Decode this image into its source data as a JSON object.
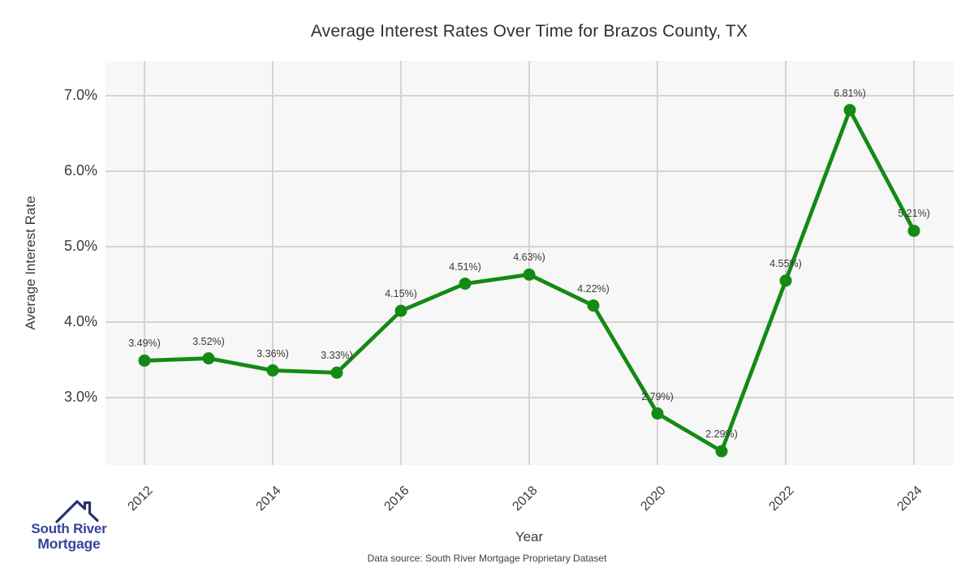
{
  "header": {
    "title": "Average Interest Rates Over Time for Brazos County, TX"
  },
  "chart_data": {
    "type": "line",
    "x": [
      2012,
      2013,
      2014,
      2015,
      2016,
      2017,
      2018,
      2019,
      2020,
      2021,
      2022,
      2023,
      2024
    ],
    "values": [
      3.49,
      3.52,
      3.36,
      3.33,
      4.15,
      4.51,
      4.63,
      4.22,
      2.79,
      2.29,
      4.55,
      6.81,
      5.21
    ],
    "point_labels": [
      "3.49%)",
      "3.52%)",
      "3.36%)",
      "3.33%)",
      "4.15%)",
      "4.51%)",
      "4.63%)",
      "4.22%)",
      "2.79%)",
      "2.29%)",
      "4.55%)",
      "6.81%)",
      "5.21%)"
    ],
    "title": "Average Interest Rates Over Time for Brazos County, TX",
    "xlabel": "Year",
    "ylabel": "Average Interest Rate",
    "x_ticks": [
      "2012",
      "2014",
      "2016",
      "2018",
      "2020",
      "2022",
      "2024"
    ],
    "x_tick_values": [
      2012,
      2014,
      2016,
      2018,
      2020,
      2022,
      2024
    ],
    "y_ticks": [
      "7.0%",
      "6.0%",
      "5.0%",
      "4.0%",
      "3.0%"
    ],
    "y_tick_values": [
      7.0,
      6.0,
      5.0,
      4.0,
      3.0
    ],
    "ylim": [
      2.11,
      7.46
    ],
    "xlim": [
      2011.4,
      2024.6
    ],
    "grid": "on",
    "legend": "none",
    "line_color": "#148a14",
    "marker_color": "#148a14",
    "panel_bg": "#f7f7f7",
    "grid_color": "#d4d4d4"
  },
  "caption": "Data source: South River Mortgage Proprietary Dataset",
  "logo": {
    "line1": "South River",
    "line2": "Mortgage",
    "text_color": "#35439a",
    "roof_color": "#283273"
  }
}
